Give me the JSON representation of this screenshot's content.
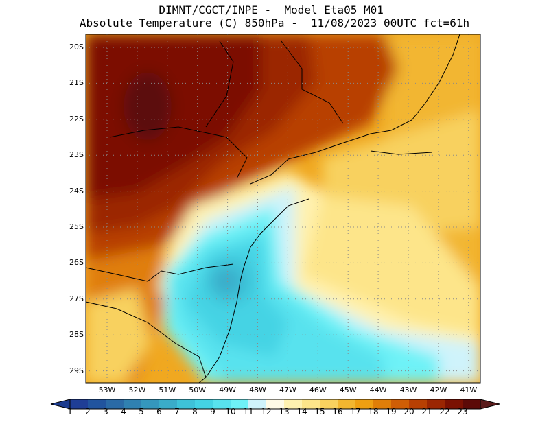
{
  "title": {
    "line1": "DIMNT/CGCT/INPE -  Model Eta05_M01_",
    "line2": "Absolute Temperature (C) 850hPa -  11/08/2023 00UTC fct=61h"
  },
  "chart_data": {
    "type": "heatmap",
    "variable": "Absolute Temperature (C) 850hPa",
    "lat_labels": [
      "20S",
      "21S",
      "22S",
      "23S",
      "24S",
      "25S",
      "26S",
      "27S",
      "28S",
      "29S"
    ],
    "lon_labels": [
      "53W",
      "52W",
      "51W",
      "50W",
      "49W",
      "48W",
      "47W",
      "46W",
      "45W",
      "44W",
      "43W",
      "42W",
      "41W"
    ],
    "colorbar_labels": [
      "1",
      "2",
      "3",
      "4",
      "5",
      "6",
      "7",
      "8",
      "9",
      "10",
      "11",
      "12",
      "13",
      "14",
      "15",
      "16",
      "17",
      "18",
      "19",
      "20",
      "21",
      "22",
      "23"
    ],
    "colorbar_colors": [
      "#1f3e96",
      "#21549e",
      "#2a6aa6",
      "#3081b1",
      "#3597bd",
      "#3aacc9",
      "#3ec2d8",
      "#44d3e4",
      "#58e2ee",
      "#6ef2f7",
      "#cff3fb",
      "#fffbe6",
      "#fff2b0",
      "#fde58a",
      "#f8d15f",
      "#f2b630",
      "#ee9f12",
      "#e07e08",
      "#cf5e06",
      "#b84003",
      "#9b2602",
      "#7b1102",
      "#5c0a07"
    ],
    "colorbar_extension_colors": {
      "low": "#1a3a8e",
      "high": "#5a1a1a"
    },
    "regions": [
      {
        "name": "interior-hot",
        "value_c": 22
      },
      {
        "name": "ocean-cool",
        "value_c": 10
      },
      {
        "name": "ocean-warm-northeast",
        "value_c": 16
      }
    ]
  }
}
